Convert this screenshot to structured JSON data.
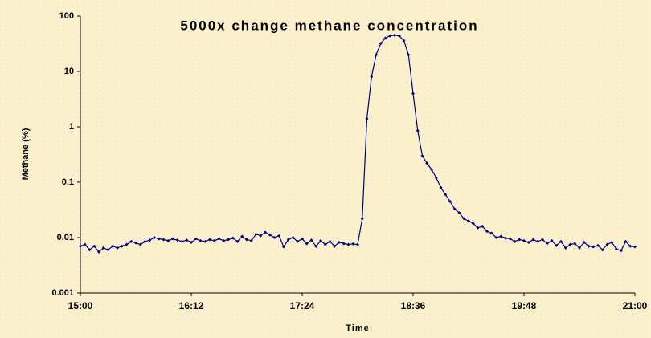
{
  "chart_data": {
    "type": "line",
    "title": "5000x change methane concentration",
    "x_label": "Time",
    "y_label": "Methane (%)",
    "log_y": true,
    "grid": false,
    "xlim": [
      "15:00",
      "21:00"
    ],
    "xticks": [
      "15:00",
      "16:12",
      "17:24",
      "18:36",
      "19:48",
      "21:00"
    ],
    "ylim": [
      0.001,
      100
    ],
    "yticks": [
      0.001,
      0.01,
      0.1,
      1,
      10,
      100
    ],
    "x": [
      "15:00",
      "15:03",
      "15:06",
      "15:09",
      "15:12",
      "15:15",
      "15:18",
      "15:21",
      "15:24",
      "15:27",
      "15:30",
      "15:33",
      "15:36",
      "15:39",
      "15:42",
      "15:45",
      "15:48",
      "15:51",
      "15:54",
      "15:57",
      "16:00",
      "16:03",
      "16:06",
      "16:09",
      "16:12",
      "16:15",
      "16:18",
      "16:21",
      "16:24",
      "16:27",
      "16:30",
      "16:33",
      "16:36",
      "16:39",
      "16:42",
      "16:45",
      "16:48",
      "16:51",
      "16:54",
      "16:57",
      "17:00",
      "17:03",
      "17:06",
      "17:09",
      "17:12",
      "17:15",
      "17:18",
      "17:21",
      "17:24",
      "17:27",
      "17:30",
      "17:33",
      "17:36",
      "17:39",
      "17:42",
      "17:45",
      "17:48",
      "17:51",
      "17:54",
      "17:57",
      "18:00",
      "18:03",
      "18:06",
      "18:09",
      "18:12",
      "18:15",
      "18:18",
      "18:21",
      "18:24",
      "18:27",
      "18:30",
      "18:33",
      "18:36",
      "18:39",
      "18:42",
      "18:45",
      "18:48",
      "18:51",
      "18:54",
      "18:57",
      "19:00",
      "19:03",
      "19:06",
      "19:09",
      "19:12",
      "19:15",
      "19:18",
      "19:21",
      "19:24",
      "19:27",
      "19:30",
      "19:33",
      "19:36",
      "19:39",
      "19:42",
      "19:45",
      "19:48",
      "19:51",
      "19:54",
      "19:57",
      "20:00",
      "20:03",
      "20:06",
      "20:09",
      "20:12",
      "20:15",
      "20:18",
      "20:21",
      "20:24",
      "20:27",
      "20:30",
      "20:33",
      "20:36",
      "20:39",
      "20:42",
      "20:45",
      "20:48",
      "20:51",
      "20:54",
      "20:57",
      "21:00"
    ],
    "series": [
      {
        "name": "Methane",
        "color": "#000080",
        "values": [
          0.007,
          0.0075,
          0.006,
          0.007,
          0.0055,
          0.0065,
          0.006,
          0.007,
          0.0065,
          0.007,
          0.0075,
          0.0085,
          0.008,
          0.0075,
          0.0085,
          0.009,
          0.01,
          0.0095,
          0.0092,
          0.0088,
          0.0095,
          0.009,
          0.0085,
          0.009,
          0.0082,
          0.0095,
          0.0088,
          0.0085,
          0.0092,
          0.0088,
          0.0095,
          0.0088,
          0.0092,
          0.0098,
          0.0085,
          0.0105,
          0.0092,
          0.0088,
          0.0115,
          0.0108,
          0.0125,
          0.0112,
          0.01,
          0.0108,
          0.0068,
          0.0092,
          0.01,
          0.0085,
          0.0095,
          0.0078,
          0.009,
          0.007,
          0.0088,
          0.0075,
          0.0085,
          0.007,
          0.0082,
          0.0078,
          0.0075,
          0.0077,
          0.0075,
          0.022,
          1.4,
          8,
          20,
          32,
          40,
          44,
          45,
          44,
          36,
          20,
          4,
          0.85,
          0.3,
          0.22,
          0.17,
          0.12,
          0.08,
          0.06,
          0.045,
          0.033,
          0.028,
          0.022,
          0.02,
          0.018,
          0.015,
          0.016,
          0.013,
          0.012,
          0.01,
          0.0105,
          0.0098,
          0.0095,
          0.0085,
          0.0092,
          0.0088,
          0.0082,
          0.0092,
          0.0085,
          0.0092,
          0.0078,
          0.0088,
          0.0072,
          0.0085,
          0.0065,
          0.0075,
          0.0078,
          0.0065,
          0.0082,
          0.007,
          0.0068,
          0.0072,
          0.006,
          0.0075,
          0.0082,
          0.0062,
          0.0058,
          0.0085,
          0.007,
          0.0068
        ]
      }
    ]
  }
}
